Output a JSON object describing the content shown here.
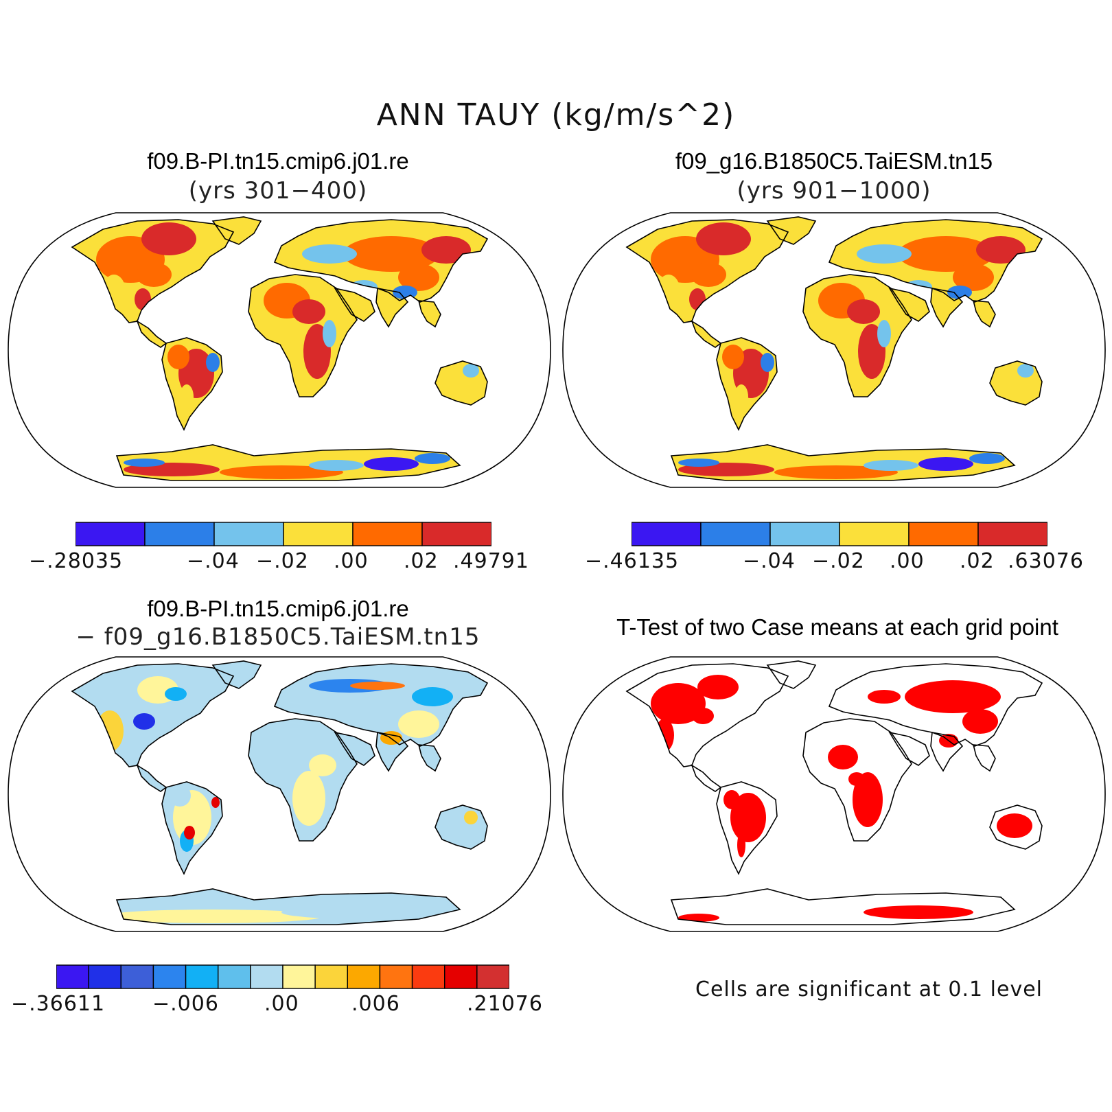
{
  "figure": {
    "title": "ANN TAUY (kg/m/s^2)"
  },
  "panels": [
    {
      "id": "case1",
      "title": "f09.B-PI.tn15.cmip6.j01.re",
      "subtitle": "(yrs 301−400)",
      "colorbar": {
        "colors": [
          "#3b17f2",
          "#2c7fe8",
          "#74c3ec",
          "#fbe03a",
          "#ff6a00",
          "#d92a2a"
        ],
        "labels": [
          "−.28035",
          "−.04",
          "−.02",
          ".00",
          ".02",
          ".49791"
        ]
      }
    },
    {
      "id": "case2",
      "title": "f09_g16.B1850C5.TaiESM.tn15",
      "subtitle": "(yrs 901−1000)",
      "colorbar": {
        "colors": [
          "#3b17f2",
          "#2c7fe8",
          "#74c3ec",
          "#fbe03a",
          "#ff6a00",
          "#d92a2a"
        ],
        "labels": [
          "−.46135",
          "−.04",
          "−.02",
          ".00",
          ".02",
          ".63076"
        ]
      }
    },
    {
      "id": "diff",
      "title": "f09.B-PI.tn15.cmip6.j01.re",
      "subtitle": "− f09_g16.B1850C5.TaiESM.tn15",
      "colorbar": {
        "colors": [
          "#3b17f2",
          "#2030e8",
          "#3d5fd8",
          "#2c84ee",
          "#12b0f5",
          "#5fbfec",
          "#b2dcf0",
          "#fff59a",
          "#fbd43a",
          "#fca800",
          "#ff7410",
          "#fb3b10",
          "#e50000",
          "#d33030"
        ],
        "labels": [
          "−.36611",
          "−.006",
          ".00",
          ".006",
          ".21076"
        ]
      }
    },
    {
      "id": "ttest",
      "title": "T-Test of two Case means at each grid point",
      "note": "Cells are significant at 0.1 level",
      "fill_color": "#ff0000"
    }
  ]
}
